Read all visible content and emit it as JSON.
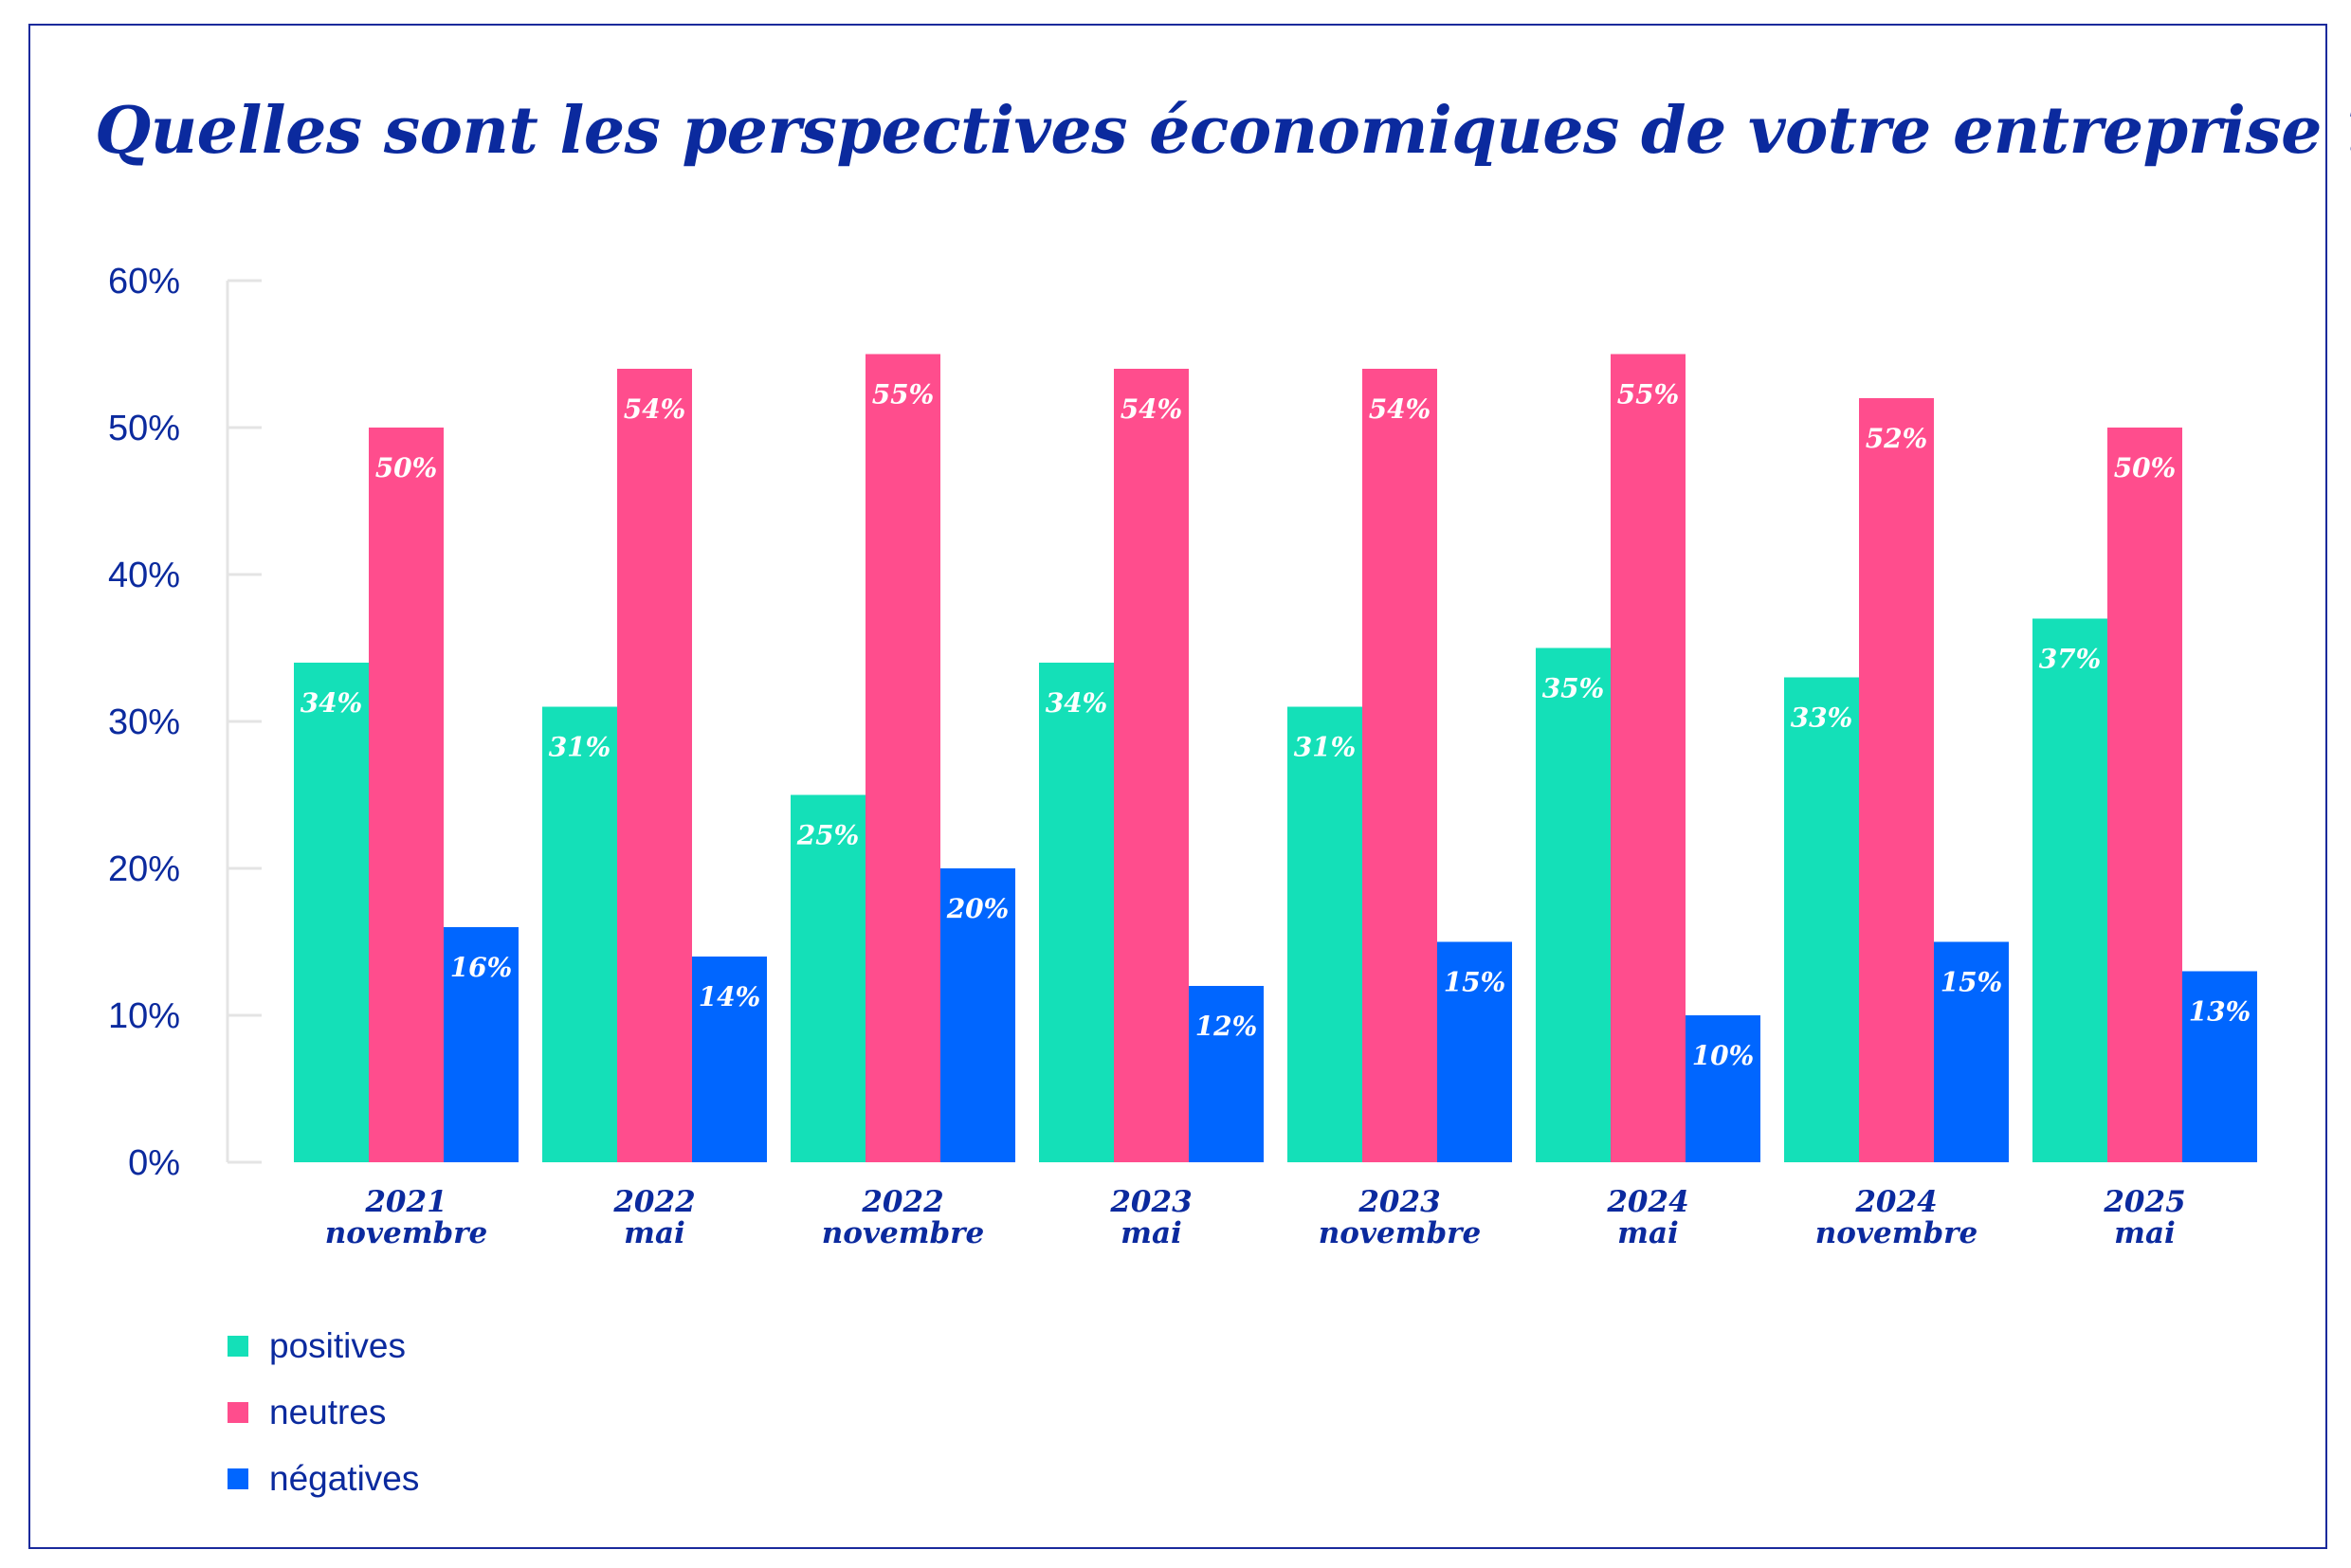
{
  "title": "Quelles sont les perspectives économiques de votre entreprise ?",
  "chart_data": {
    "type": "bar",
    "title": "Quelles sont les perspectives économiques de votre entreprise ?",
    "categories": [
      [
        "2021",
        "novembre"
      ],
      [
        "2022",
        "mai"
      ],
      [
        "2022",
        "novembre"
      ],
      [
        "2023",
        "mai"
      ],
      [
        "2023",
        "novembre"
      ],
      [
        "2024",
        "mai"
      ],
      [
        "2024",
        "novembre"
      ],
      [
        "2025",
        "mai"
      ]
    ],
    "series": [
      {
        "name": "positives",
        "color": "#14e0b8",
        "values": [
          34,
          31,
          25,
          34,
          31,
          35,
          33,
          37
        ],
        "labels": [
          "34%",
          "31%",
          "25%",
          "34%",
          "31%",
          "35%",
          "33%",
          "37%"
        ]
      },
      {
        "name": "neutres",
        "color": "#ff4d8d",
        "values": [
          50,
          54,
          55,
          54,
          54,
          55,
          52,
          50
        ],
        "labels": [
          "50%",
          "54%",
          "55%",
          "54%",
          "54%",
          "55%",
          "52%",
          "50%"
        ]
      },
      {
        "name": "négatives",
        "color": "#0066ff",
        "values": [
          16,
          14,
          20,
          12,
          15,
          10,
          15,
          13
        ],
        "labels": [
          "16%",
          "14%",
          "20%",
          "12%",
          "15%",
          "10%",
          "15%",
          "13%"
        ]
      }
    ],
    "ylim": [
      0,
      60
    ],
    "yticks": [
      0,
      10,
      20,
      30,
      40,
      50,
      60
    ],
    "ytick_labels": [
      "0%",
      "10%",
      "20%",
      "30%",
      "40%",
      "50%",
      "60%"
    ],
    "grid": false,
    "legend_position": "bottom-left"
  },
  "colors": {
    "text": "#0b2a9e",
    "frame": "#1a2a9c",
    "axis": "#e4e4e4"
  }
}
